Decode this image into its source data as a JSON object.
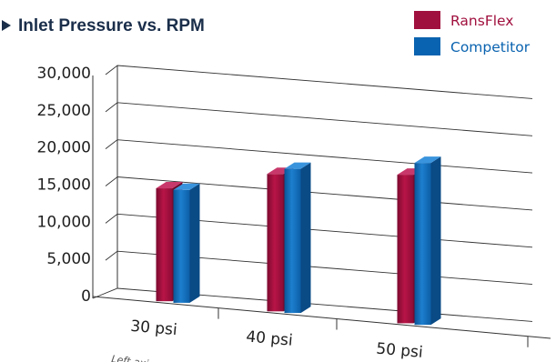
{
  "chart_data": {
    "type": "bar",
    "title": "Inlet Pressure vs. RPM",
    "categories": [
      "30 psi",
      "40 psi",
      "50 psi"
    ],
    "series": [
      {
        "name": "RansFlex",
        "values": [
          15200,
          18500,
          20000
        ]
      },
      {
        "name": "Competitor",
        "values": [
          15200,
          19400,
          21800
        ]
      }
    ],
    "ylim": [
      0,
      30000
    ],
    "yticks": [
      "0",
      "5,000",
      "10,000",
      "15,000",
      "20,000",
      "25,000",
      "30,000"
    ],
    "grid": true,
    "legend_position": "top-right",
    "footnote": "Left axis"
  },
  "colors": {
    "RansFlex": "#a0103e",
    "Competitor": "#0a63b0",
    "title": "#1a2e4a"
  }
}
